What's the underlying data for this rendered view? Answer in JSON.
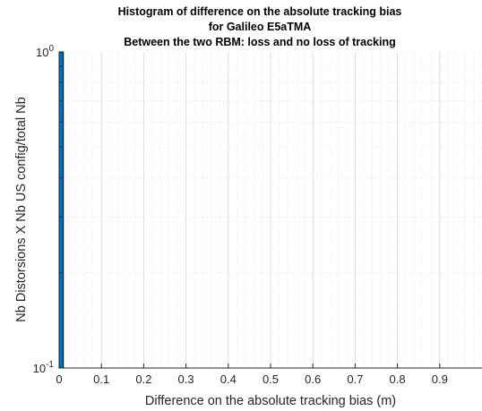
{
  "chart_data": {
    "type": "bar",
    "title_lines": [
      "Histogram of difference on the absolute tracking bias",
      "for Galileo E5aTMA",
      "Between the two RBM: loss and no loss of tracking"
    ],
    "xlabel": "Difference on the absolute tracking bias (m)",
    "ylabel": "Nb Distorsions X Nb US config/total Nb",
    "x_ticks": [
      "0",
      "0.1",
      "0.2",
      "0.3",
      "0.4",
      "0.5",
      "0.6",
      "0.7",
      "0.8",
      "0.9"
    ],
    "y_ticks": [
      {
        "base": "10",
        "exp": "-1",
        "value": 0.1
      },
      {
        "base": "10",
        "exp": "0",
        "value": 1
      }
    ],
    "xlim": [
      0,
      1
    ],
    "ylim": [
      0.1,
      1
    ],
    "y_scale": "log",
    "grid": true,
    "minor_grid": true,
    "bins": [
      {
        "x_start": 0,
        "x_end": 0.01,
        "value": 1
      }
    ],
    "colors": {
      "bar_fill": "#0072bd",
      "bar_edge": "#000000",
      "axes": "#262626",
      "grid_major": "#dcdcdc",
      "grid_minor": "#e4e4e4"
    }
  }
}
